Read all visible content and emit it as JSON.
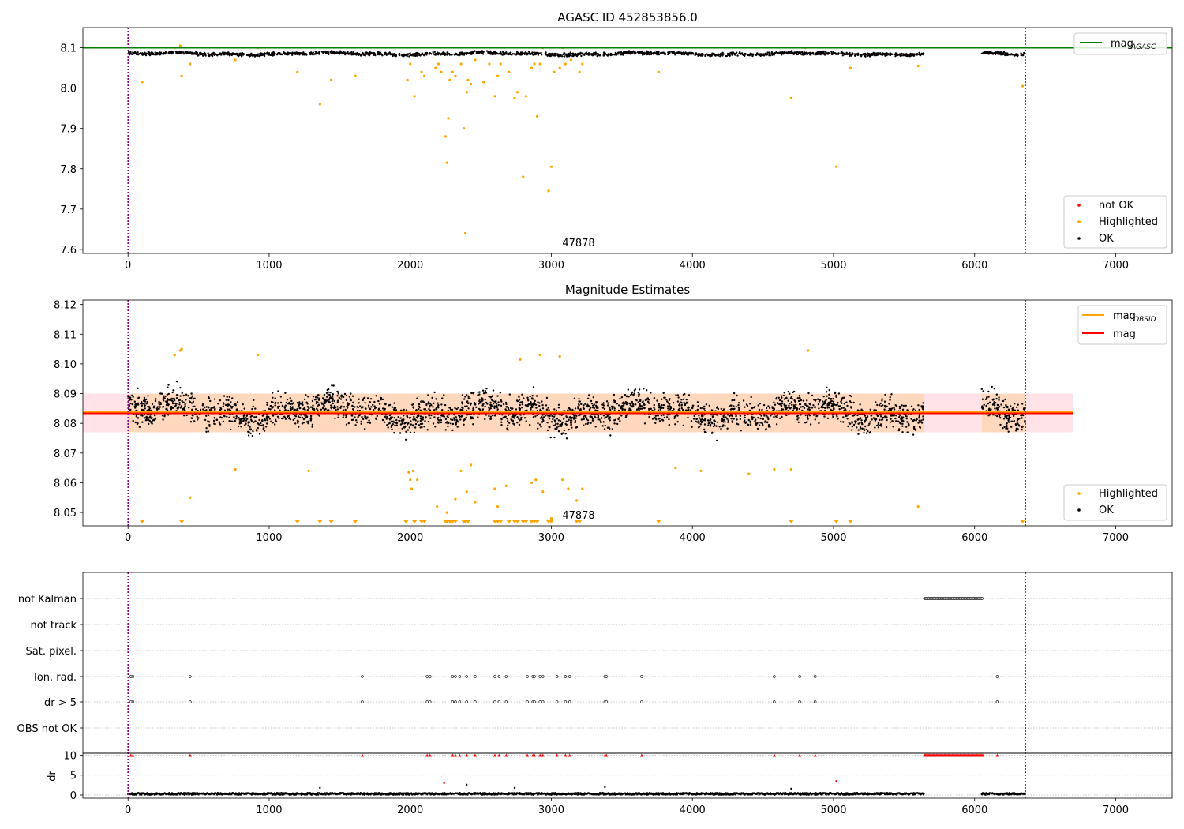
{
  "chart_data": [
    {
      "type": "scatter",
      "title": "AGASC ID 452853856.0",
      "xlim": [
        -320,
        7400
      ],
      "ylim": [
        7.59,
        8.15
      ],
      "xticks": [
        "0",
        "1000",
        "2000",
        "3000",
        "4000",
        "5000",
        "6000",
        "7000"
      ],
      "yticks": [
        "7.6",
        "7.7",
        "7.8",
        "7.9",
        "8.0",
        "8.1"
      ],
      "obs_label": "47878",
      "vlines": [
        0,
        6360
      ],
      "hlines": [
        {
          "name": "mag_AGASC",
          "value": 8.1,
          "color": "#008000"
        }
      ],
      "legend_lines": [
        {
          "label": "mag",
          "sub": "AGASC",
          "color": "#008000"
        }
      ],
      "legend_points": [
        {
          "label": "not OK",
          "color": "#ff0000"
        },
        {
          "label": "Highlighted",
          "color": "#ffa500"
        },
        {
          "label": "OK",
          "color": "#000000"
        }
      ],
      "ok_band": {
        "center": 8.085,
        "spread": 0.006
      },
      "time_segments": [
        [
          0,
          5640
        ],
        [
          6050,
          6360
        ]
      ],
      "highlighted": [
        [
          100,
          8.015
        ],
        [
          330,
          8.1
        ],
        [
          370,
          8.105
        ],
        [
          380,
          8.03
        ],
        [
          440,
          8.06
        ],
        [
          760,
          8.07
        ],
        [
          920,
          8.1
        ],
        [
          1200,
          8.04
        ],
        [
          1360,
          7.96
        ],
        [
          1440,
          8.02
        ],
        [
          1610,
          8.03
        ],
        [
          1980,
          8.02
        ],
        [
          2000,
          8.06
        ],
        [
          2030,
          7.98
        ],
        [
          2080,
          8.04
        ],
        [
          2100,
          8.03
        ],
        [
          2180,
          8.05
        ],
        [
          2200,
          8.06
        ],
        [
          2220,
          8.04
        ],
        [
          2250,
          7.88
        ],
        [
          2260,
          7.815
        ],
        [
          2270,
          7.925
        ],
        [
          2280,
          8.02
        ],
        [
          2300,
          8.04
        ],
        [
          2320,
          8.03
        ],
        [
          2360,
          8.06
        ],
        [
          2380,
          7.9
        ],
        [
          2390,
          7.64
        ],
        [
          2400,
          7.99
        ],
        [
          2410,
          8.02
        ],
        [
          2430,
          8.01
        ],
        [
          2460,
          8.07
        ],
        [
          2520,
          8.015
        ],
        [
          2560,
          8.06
        ],
        [
          2600,
          7.98
        ],
        [
          2620,
          8.03
        ],
        [
          2640,
          8.06
        ],
        [
          2700,
          8.04
        ],
        [
          2740,
          7.975
        ],
        [
          2760,
          7.99
        ],
        [
          2800,
          7.78
        ],
        [
          2820,
          7.98
        ],
        [
          2860,
          8.05
        ],
        [
          2880,
          8.06
        ],
        [
          2900,
          7.93
        ],
        [
          2920,
          8.06
        ],
        [
          2940,
          8.1
        ],
        [
          2980,
          7.745
        ],
        [
          3000,
          7.805
        ],
        [
          3020,
          8.04
        ],
        [
          3060,
          8.05
        ],
        [
          3080,
          8.1
        ],
        [
          3100,
          8.06
        ],
        [
          3140,
          8.07
        ],
        [
          3200,
          8.04
        ],
        [
          3220,
          8.06
        ],
        [
          3760,
          8.04
        ],
        [
          4700,
          7.975
        ],
        [
          4800,
          8.1
        ],
        [
          5020,
          7.805
        ],
        [
          5120,
          8.05
        ],
        [
          5600,
          8.055
        ],
        [
          6340,
          8.005
        ]
      ],
      "not_ok": []
    },
    {
      "type": "scatter",
      "title": "Magnitude Estimates",
      "xlim": [
        -320,
        7400
      ],
      "ylim": [
        8.0455,
        8.1215
      ],
      "xticks": [
        "0",
        "1000",
        "2000",
        "3000",
        "4000",
        "5000",
        "6000",
        "7000"
      ],
      "yticks": [
        "8.05",
        "8.06",
        "8.07",
        "8.08",
        "8.09",
        "8.10",
        "8.11",
        "8.12"
      ],
      "obs_label": "47878",
      "vlines": [
        0,
        6360
      ],
      "hlines": [
        {
          "name": "mag_OBSID",
          "value": 8.0835,
          "color": "#ffa500"
        },
        {
          "name": "mag",
          "value": 8.0835,
          "color": "#ff0000"
        }
      ],
      "bands": [
        {
          "x": [
            -320,
            6700
          ],
          "y": [
            8.077,
            8.09
          ],
          "color": "#ffc0cb",
          "opacity": 0.45
        },
        {
          "x": [
            0,
            5640
          ],
          "y": [
            8.077,
            8.09
          ],
          "color": "#ffa500",
          "opacity": 0.18
        },
        {
          "x": [
            6050,
            6360
          ],
          "y": [
            8.077,
            8.09
          ],
          "color": "#ffa500",
          "opacity": 0.18
        }
      ],
      "legend_lines": [
        {
          "label": "mag",
          "sub": "OBSID",
          "color": "#ffa500"
        },
        {
          "label": "mag",
          "sub": "",
          "color": "#ff0000"
        }
      ],
      "legend_points": [
        {
          "label": "Highlighted",
          "color": "#ffa500"
        },
        {
          "label": "OK",
          "color": "#000000"
        }
      ],
      "ok_band": {
        "center": 8.084,
        "spread": 0.0075
      },
      "time_segments": [
        [
          0,
          5640
        ],
        [
          6050,
          6360
        ]
      ],
      "highlighted": [
        [
          330,
          8.103
        ],
        [
          370,
          8.1045
        ],
        [
          380,
          8.105
        ],
        [
          440,
          8.055
        ],
        [
          760,
          8.0645
        ],
        [
          920,
          8.103
        ],
        [
          1280,
          8.064
        ],
        [
          1990,
          8.0635
        ],
        [
          2000,
          8.061
        ],
        [
          2010,
          8.058
        ],
        [
          2020,
          8.064
        ],
        [
          2050,
          8.061
        ],
        [
          2190,
          8.052
        ],
        [
          2260,
          8.05
        ],
        [
          2320,
          8.0545
        ],
        [
          2360,
          8.064
        ],
        [
          2400,
          8.057
        ],
        [
          2430,
          8.066
        ],
        [
          2460,
          8.0535
        ],
        [
          2600,
          8.058
        ],
        [
          2620,
          8.052
        ],
        [
          2680,
          8.059
        ],
        [
          2780,
          8.1015
        ],
        [
          2860,
          8.06
        ],
        [
          2890,
          8.061
        ],
        [
          2920,
          8.103
        ],
        [
          2940,
          8.057
        ],
        [
          3000,
          8.048
        ],
        [
          3060,
          8.1025
        ],
        [
          3080,
          8.061
        ],
        [
          3120,
          8.058
        ],
        [
          3180,
          8.054
        ],
        [
          3220,
          8.058
        ],
        [
          3880,
          8.065
        ],
        [
          4060,
          8.064
        ],
        [
          4400,
          8.063
        ],
        [
          4580,
          8.0645
        ],
        [
          4700,
          8.0645
        ],
        [
          4820,
          8.1045
        ],
        [
          5600,
          8.052
        ]
      ],
      "offscale_low": [
        100,
        380,
        1200,
        1360,
        1440,
        1610,
        1970,
        2030,
        2080,
        2100,
        2250,
        2260,
        2280,
        2300,
        2320,
        2380,
        2390,
        2410,
        2600,
        2620,
        2640,
        2700,
        2740,
        2760,
        2800,
        2820,
        2860,
        2880,
        2900,
        2980,
        3000,
        3180,
        3200,
        3760,
        4700,
        5020,
        5120,
        6340
      ]
    },
    {
      "type": "scatter",
      "title": "",
      "xlim": [
        -320,
        7400
      ],
      "xticks": [
        "0",
        "1000",
        "2000",
        "3000",
        "4000",
        "5000",
        "6000",
        "7000"
      ],
      "flag_rows": [
        "not Kalman",
        "not track",
        "Sat. pixel.",
        "Ion. rad.",
        "dr > 5",
        "OBS not OK"
      ],
      "vlines": [
        0,
        6360
      ],
      "not_kalman_range": [
        5645,
        6060
      ],
      "ion_rad_times": [
        20,
        35,
        440,
        1660,
        2120,
        2140,
        2300,
        2320,
        2350,
        2400,
        2460,
        2600,
        2630,
        2680,
        2830,
        2870,
        2880,
        2920,
        2940,
        3040,
        3100,
        3130,
        3380,
        3390,
        3640,
        4580,
        4760,
        4870,
        6160
      ],
      "dr_panel": {
        "ylim": [
          -0.8,
          10.5
        ],
        "yticks": [
          "0",
          "5",
          "10"
        ],
        "ylabel": "dr",
        "clip_value": 10,
        "baseline": 0.3,
        "outliers": [
          [
            1360,
            1.8
          ],
          [
            2240,
            3.0
          ],
          [
            2400,
            2.6
          ],
          [
            2740,
            1.8
          ],
          [
            3380,
            2.0
          ],
          [
            4700,
            1.6
          ],
          [
            5020,
            3.5
          ]
        ]
      }
    }
  ]
}
